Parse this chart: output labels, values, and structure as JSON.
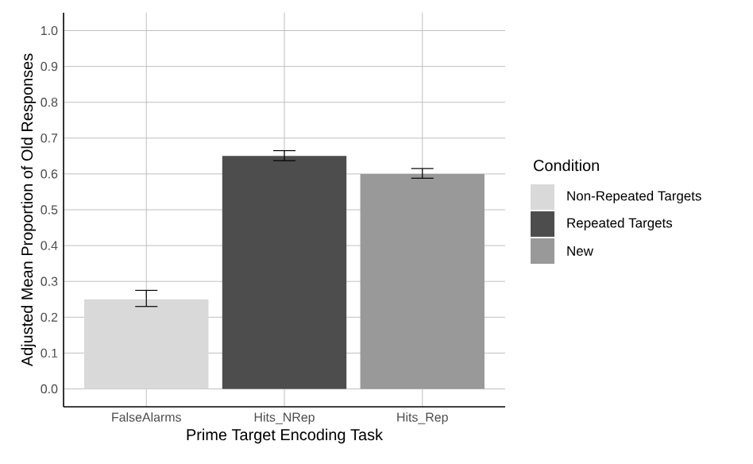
{
  "chart_data": {
    "type": "bar",
    "xlabel": "Prime Target Encoding Task",
    "ylabel": "Adjusted Mean Proportion of Old Responses",
    "legend_title": "Condition",
    "categories": [
      "FalseAlarms",
      "Hits_NRep",
      "Hits_Rep"
    ],
    "series": [
      {
        "name": "Non-Repeated Targets",
        "color": "#d9d9d9",
        "values": [
          0.25,
          null,
          null
        ],
        "errors": [
          [
            0.23,
            0.275
          ],
          null,
          null
        ]
      },
      {
        "name": "Repeated Targets",
        "color": "#4d4d4d",
        "values": [
          null,
          0.65,
          null
        ],
        "errors": [
          null,
          [
            0.637,
            0.665
          ],
          null
        ]
      },
      {
        "name": "New",
        "color": "#999999",
        "values": [
          null,
          null,
          0.6
        ],
        "errors": [
          null,
          null,
          [
            0.588,
            0.615
          ]
        ]
      }
    ],
    "ylim": [
      -0.05,
      1.05
    ],
    "yticks": [
      {
        "value": 0,
        "label": "0.0"
      },
      0.1,
      0.2,
      0.3,
      0.4,
      0.5,
      0.6,
      0.7,
      0.8,
      0.9,
      {
        "value": 1,
        "label": "1.0"
      }
    ],
    "grid": true,
    "legend": "right"
  }
}
